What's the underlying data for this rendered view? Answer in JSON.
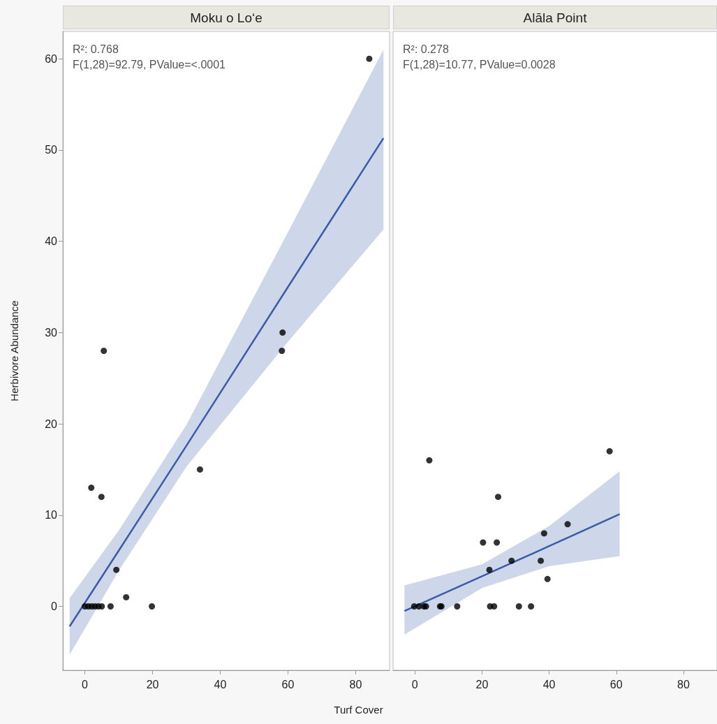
{
  "chart_data": [
    {
      "type": "scatter",
      "title": "Moku o Loʻe",
      "ylabel": "Herbivore Abundance",
      "xlabel": "Turf Cover",
      "annotations": [
        "R²: 0.768",
        "F(1,28)=92.79, PValue=<.0001"
      ],
      "xlim": [
        -6.5,
        90
      ],
      "xticks": [
        0,
        20,
        40,
        60,
        80
      ],
      "ylim": [
        -7,
        63
      ],
      "yticks": [
        0,
        10,
        20,
        30,
        40,
        50,
        60
      ],
      "grid": false,
      "series": [
        {
          "marker": "circle",
          "color": "#000000",
          "x": [
            0,
            1,
            2,
            3,
            4,
            5,
            7.6,
            19.8,
            12.2,
            9.3,
            4.9,
            1.9,
            5.6,
            34,
            58.2,
            58.4,
            84
          ],
          "values": [
            0,
            0,
            0,
            0,
            0,
            0,
            0,
            0,
            1,
            4,
            12,
            13,
            28,
            15,
            28,
            30,
            60
          ]
        },
        {
          "type": "line",
          "color": "#3a5ba8",
          "line_style": "solid",
          "x": [
            -4.5,
            10,
            30,
            60,
            88.2
          ],
          "values": [
            -2.2,
            6.1,
            17.6,
            35,
            51.3
          ],
          "lower": [
            -5.3,
            3.9,
            15.3,
            29,
            41.3
          ],
          "upper": [
            0.9,
            8.3,
            19.9,
            41,
            61
          ]
        }
      ]
    },
    {
      "type": "scatter",
      "title": "Alāla Point",
      "annotations": [
        "R²: 0.278",
        "F(1,28)=10.77, PValue=0.0028"
      ],
      "xlim": [
        -6.5,
        90
      ],
      "xticks": [
        0,
        20,
        40,
        60,
        80
      ],
      "ylim": [
        -7,
        63
      ],
      "yticks": [
        0,
        10,
        20,
        30,
        40,
        50,
        60
      ],
      "tick_labels": "x",
      "grid": false,
      "series": [
        {
          "marker": "circle",
          "color": "#000000",
          "x": [
            -0.2,
            1.2,
            2.7,
            3.3,
            7.5,
            7.9,
            12.6,
            22.4,
            23.6,
            31,
            34.6,
            4.3,
            58,
            24.8,
            20.3,
            24.4,
            38.5,
            45.5,
            28.8,
            37.5,
            22.2,
            39.5
          ],
          "values": [
            0,
            0,
            0,
            0,
            0,
            0,
            0,
            0,
            0,
            0,
            0,
            16,
            17,
            12,
            7,
            7,
            8,
            9,
            5,
            5,
            4,
            3
          ]
        },
        {
          "type": "line",
          "color": "#3a5ba8",
          "line_style": "solid",
          "x": [
            -3.1,
            20,
            40,
            61
          ],
          "values": [
            -0.5,
            3.3,
            6.6,
            10.1
          ],
          "lower": [
            -3.1,
            2.0,
            4.4,
            5.5
          ],
          "upper": [
            2.3,
            4.6,
            8.8,
            14.8
          ]
        }
      ]
    }
  ]
}
